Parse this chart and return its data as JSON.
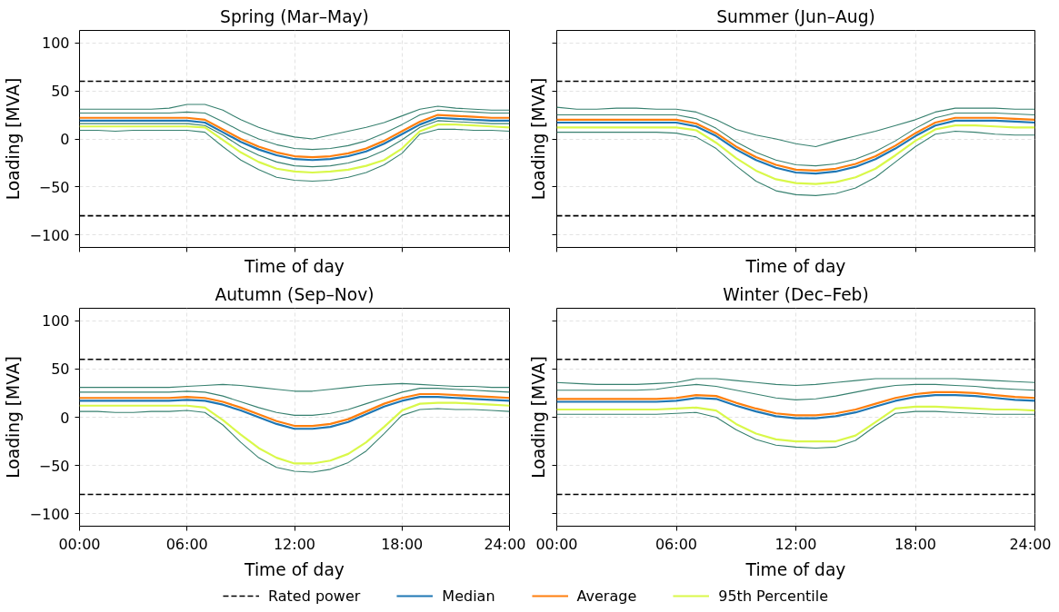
{
  "chart_data": [
    {
      "type": "line",
      "title": "Spring (Mar–May)",
      "xlabel": "Time of day",
      "ylabel": "Loading [MVA]",
      "tick_labels": "y",
      "grid": true,
      "x": [
        0,
        1,
        2,
        3,
        4,
        5,
        6,
        7,
        8,
        9,
        10,
        11,
        12,
        13,
        14,
        15,
        16,
        17,
        18,
        19,
        20,
        21,
        22,
        23,
        24
      ],
      "xlim": [
        0,
        24
      ],
      "xticks": [
        {
          "value": 0,
          "label": null
        },
        {
          "value": 6,
          "label": null
        },
        {
          "value": 12,
          "label": null
        },
        {
          "value": 18,
          "label": null
        },
        {
          "value": 24,
          "label": null
        }
      ],
      "ylim": [
        -113,
        113
      ],
      "yticks": [
        -100,
        -50,
        0,
        50,
        100
      ],
      "ref_lines": [
        {
          "axis": "y",
          "value": 60,
          "color": "#000000",
          "line_style": "dashed"
        },
        {
          "axis": "y",
          "value": -80,
          "color": "#000000",
          "line_style": "dashed"
        }
      ],
      "series": [
        {
          "color": "#37806f",
          "values": [
            31,
            31,
            31,
            31,
            31,
            32,
            36,
            36,
            30,
            20,
            12,
            6,
            2,
            0,
            4,
            8,
            12,
            17,
            24,
            31,
            34,
            32,
            31,
            30,
            30
          ]
        },
        {
          "color": "#37806f",
          "values": [
            27,
            27,
            27,
            27,
            27,
            27,
            28,
            27,
            18,
            8,
            0,
            -6,
            -10,
            -11,
            -10,
            -7,
            -2,
            6,
            15,
            25,
            30,
            29,
            28,
            27,
            27
          ]
        },
        {
          "color": "#37806f",
          "values": [
            16,
            16,
            16,
            16,
            16,
            16,
            16,
            14,
            4,
            -8,
            -17,
            -24,
            -28,
            -29,
            -28,
            -25,
            -20,
            -12,
            -1,
            12,
            19,
            18,
            17,
            16,
            16
          ]
        },
        {
          "color": "#37806f",
          "values": [
            9,
            9,
            8,
            9,
            9,
            9,
            9,
            7,
            -8,
            -22,
            -32,
            -40,
            -43,
            -44,
            -43,
            -40,
            -35,
            -27,
            -15,
            5,
            10,
            10,
            9,
            9,
            8
          ]
        },
        {
          "color": "#d9f84a",
          "values": [
            13,
            13,
            13,
            13,
            13,
            13,
            13,
            12,
            -1,
            -14,
            -24,
            -31,
            -34,
            -35,
            -34,
            -32,
            -28,
            -22,
            -10,
            8,
            15,
            15,
            14,
            13,
            12
          ]
        },
        {
          "color": "#1f77b4",
          "values": [
            19,
            19,
            19,
            19,
            19,
            19,
            19,
            17,
            7,
            -3,
            -11,
            -17,
            -21,
            -22,
            -21,
            -18,
            -13,
            -5,
            5,
            15,
            22,
            21,
            20,
            19,
            19
          ]
        },
        {
          "color": "#ff7f0e",
          "values": [
            22,
            22,
            22,
            22,
            22,
            22,
            22,
            20,
            10,
            0,
            -8,
            -14,
            -18,
            -19,
            -18,
            -15,
            -10,
            -2,
            8,
            18,
            25,
            24,
            23,
            22,
            22
          ]
        }
      ]
    },
    {
      "type": "line",
      "title": "Summer (Jun–Aug)",
      "xlabel": "Time of day",
      "ylabel": "Loading [MVA]",
      "tick_labels": false,
      "grid": true,
      "x": [
        0,
        1,
        2,
        3,
        4,
        5,
        6,
        7,
        8,
        9,
        10,
        11,
        12,
        13,
        14,
        15,
        16,
        17,
        18,
        19,
        20,
        21,
        22,
        23,
        24
      ],
      "xlim": [
        0,
        24
      ],
      "xticks": [
        {
          "value": 0,
          "label": null
        },
        {
          "value": 6,
          "label": null
        },
        {
          "value": 12,
          "label": null
        },
        {
          "value": 18,
          "label": null
        },
        {
          "value": 24,
          "label": null
        }
      ],
      "ylim": [
        -113,
        113
      ],
      "yticks": [
        -100,
        -50,
        0,
        50,
        100
      ],
      "ref_lines": [
        {
          "axis": "y",
          "value": 60,
          "color": "#000000",
          "line_style": "dashed"
        },
        {
          "axis": "y",
          "value": -80,
          "color": "#000000",
          "line_style": "dashed"
        }
      ],
      "series": [
        {
          "color": "#37806f",
          "values": [
            33,
            31,
            31,
            32,
            32,
            31,
            31,
            28,
            20,
            10,
            4,
            0,
            -5,
            -8,
            -2,
            3,
            8,
            14,
            20,
            28,
            32,
            32,
            32,
            31,
            31
          ]
        },
        {
          "color": "#37806f",
          "values": [
            25,
            25,
            25,
            25,
            25,
            25,
            25,
            21,
            11,
            -3,
            -14,
            -22,
            -27,
            -28,
            -26,
            -21,
            -13,
            -2,
            11,
            22,
            27,
            27,
            27,
            26,
            25
          ]
        },
        {
          "color": "#37806f",
          "values": [
            7,
            7,
            7,
            7,
            7,
            7,
            6,
            2,
            -10,
            -28,
            -44,
            -54,
            -58,
            -59,
            -57,
            -51,
            -40,
            -24,
            -8,
            5,
            8,
            7,
            5,
            4,
            4
          ]
        },
        {
          "color": "#d9f84a",
          "values": [
            12,
            12,
            12,
            12,
            12,
            12,
            12,
            9,
            -4,
            -20,
            -33,
            -42,
            -46,
            -47,
            -45,
            -40,
            -31,
            -17,
            -2,
            10,
            14,
            14,
            13,
            12,
            12
          ]
        },
        {
          "color": "#1f77b4",
          "values": [
            17,
            17,
            17,
            17,
            17,
            17,
            17,
            13,
            3,
            -11,
            -22,
            -30,
            -35,
            -36,
            -34,
            -29,
            -21,
            -10,
            3,
            14,
            19,
            19,
            19,
            18,
            17
          ]
        },
        {
          "color": "#ff7f0e",
          "values": [
            20,
            20,
            20,
            20,
            20,
            20,
            20,
            16,
            6,
            -8,
            -19,
            -27,
            -32,
            -33,
            -31,
            -26,
            -18,
            -7,
            6,
            17,
            22,
            22,
            22,
            21,
            20
          ]
        }
      ]
    },
    {
      "type": "line",
      "title": "Autumn (Sep–Nov)",
      "xlabel": "Time of day",
      "ylabel": "Loading [MVA]",
      "grid": true,
      "legend": "bottom",
      "x": [
        0,
        1,
        2,
        3,
        4,
        5,
        6,
        7,
        8,
        9,
        10,
        11,
        12,
        13,
        14,
        15,
        16,
        17,
        18,
        19,
        20,
        21,
        22,
        23,
        24
      ],
      "xlim": [
        0,
        24
      ],
      "xticks": [
        {
          "value": 0,
          "label": "00:00"
        },
        {
          "value": 6,
          "label": "06:00"
        },
        {
          "value": 12,
          "label": "12:00"
        },
        {
          "value": 18,
          "label": "18:00"
        },
        {
          "value": 24,
          "label": "24:00"
        }
      ],
      "ylim": [
        -113,
        113
      ],
      "yticks": [
        -100,
        -50,
        0,
        50,
        100
      ],
      "ref_lines": [
        {
          "axis": "y",
          "value": 60,
          "label": "Rated power",
          "color": "#000000",
          "line_style": "dashed"
        },
        {
          "axis": "y",
          "value": -80,
          "color": "#000000",
          "line_style": "dashed"
        }
      ],
      "series": [
        {
          "color": "#37806f",
          "values": [
            31,
            31,
            31,
            31,
            31,
            31,
            32,
            33,
            34,
            33,
            31,
            29,
            27,
            27,
            29,
            31,
            33,
            34,
            35,
            34,
            33,
            32,
            32,
            31,
            31
          ]
        },
        {
          "color": "#37806f",
          "values": [
            26,
            26,
            26,
            26,
            26,
            26,
            27,
            26,
            22,
            16,
            10,
            5,
            2,
            2,
            4,
            8,
            14,
            20,
            26,
            30,
            30,
            29,
            28,
            27,
            26
          ]
        },
        {
          "color": "#37806f",
          "values": [
            6,
            6,
            5,
            5,
            6,
            6,
            7,
            5,
            -8,
            -26,
            -42,
            -52,
            -56,
            -57,
            -54,
            -47,
            -35,
            -17,
            2,
            8,
            9,
            8,
            8,
            7,
            6
          ]
        },
        {
          "name": "Median",
          "color": "#1f77b4",
          "values": [
            17,
            17,
            17,
            17,
            17,
            17,
            18,
            17,
            13,
            7,
            0,
            -7,
            -12,
            -12,
            -10,
            -5,
            3,
            11,
            17,
            21,
            21,
            20,
            19,
            18,
            17
          ]
        },
        {
          "name": "Average",
          "color": "#ff7f0e",
          "values": [
            20,
            20,
            20,
            20,
            20,
            20,
            21,
            20,
            16,
            10,
            3,
            -4,
            -9,
            -9,
            -7,
            -2,
            6,
            14,
            20,
            24,
            24,
            23,
            22,
            21,
            20
          ]
        },
        {
          "name": "95th Percentile",
          "color": "#d9f84a",
          "values": [
            12,
            12,
            12,
            12,
            12,
            12,
            12,
            10,
            -3,
            -18,
            -32,
            -42,
            -48,
            -48,
            -45,
            -38,
            -26,
            -10,
            7,
            14,
            15,
            15,
            14,
            13,
            12
          ]
        }
      ]
    },
    {
      "type": "line",
      "title": "Winter (Dec–Feb)",
      "xlabel": "Time of day",
      "ylabel": "Loading [MVA]",
      "tick_labels": "x",
      "grid": true,
      "x": [
        0,
        1,
        2,
        3,
        4,
        5,
        6,
        7,
        8,
        9,
        10,
        11,
        12,
        13,
        14,
        15,
        16,
        17,
        18,
        19,
        20,
        21,
        22,
        23,
        24
      ],
      "xlim": [
        0,
        24
      ],
      "xticks": [
        {
          "value": 0,
          "label": "00:00"
        },
        {
          "value": 6,
          "label": "06:00"
        },
        {
          "value": 12,
          "label": "12:00"
        },
        {
          "value": 18,
          "label": "18:00"
        },
        {
          "value": 24,
          "label": "24:00"
        }
      ],
      "ylim": [
        -113,
        113
      ],
      "yticks": [
        -100,
        -50,
        0,
        50,
        100
      ],
      "ref_lines": [
        {
          "axis": "y",
          "value": 60,
          "color": "#000000",
          "line_style": "dashed"
        },
        {
          "axis": "y",
          "value": -80,
          "color": "#000000",
          "line_style": "dashed"
        }
      ],
      "series": [
        {
          "color": "#37806f",
          "values": [
            36,
            35,
            34,
            34,
            34,
            35,
            36,
            40,
            40,
            38,
            36,
            34,
            33,
            34,
            36,
            38,
            40,
            40,
            40,
            40,
            40,
            39,
            38,
            37,
            36
          ]
        },
        {
          "color": "#37806f",
          "values": [
            28,
            28,
            28,
            28,
            28,
            29,
            32,
            34,
            32,
            28,
            24,
            20,
            18,
            19,
            22,
            26,
            30,
            33,
            34,
            34,
            33,
            32,
            30,
            29,
            28
          ]
        },
        {
          "color": "#37806f",
          "values": [
            3,
            3,
            3,
            3,
            3,
            3,
            4,
            5,
            0,
            -13,
            -23,
            -29,
            -31,
            -32,
            -31,
            -24,
            -9,
            4,
            6,
            6,
            5,
            4,
            3,
            3,
            3
          ]
        },
        {
          "color": "#d9f84a",
          "values": [
            8,
            8,
            8,
            8,
            8,
            8,
            9,
            10,
            7,
            -7,
            -17,
            -23,
            -25,
            -25,
            -25,
            -19,
            -5,
            9,
            11,
            11,
            10,
            9,
            8,
            8,
            7
          ]
        },
        {
          "color": "#1f77b4",
          "values": [
            16,
            16,
            16,
            16,
            16,
            16,
            17,
            20,
            19,
            12,
            6,
            1,
            -1,
            -1,
            1,
            5,
            11,
            17,
            21,
            23,
            23,
            22,
            20,
            18,
            17
          ]
        },
        {
          "color": "#ff7f0e",
          "values": [
            19,
            19,
            19,
            19,
            19,
            19,
            20,
            23,
            22,
            15,
            9,
            4,
            2,
            2,
            4,
            8,
            14,
            20,
            24,
            26,
            26,
            25,
            23,
            21,
            20
          ]
        }
      ]
    }
  ]
}
